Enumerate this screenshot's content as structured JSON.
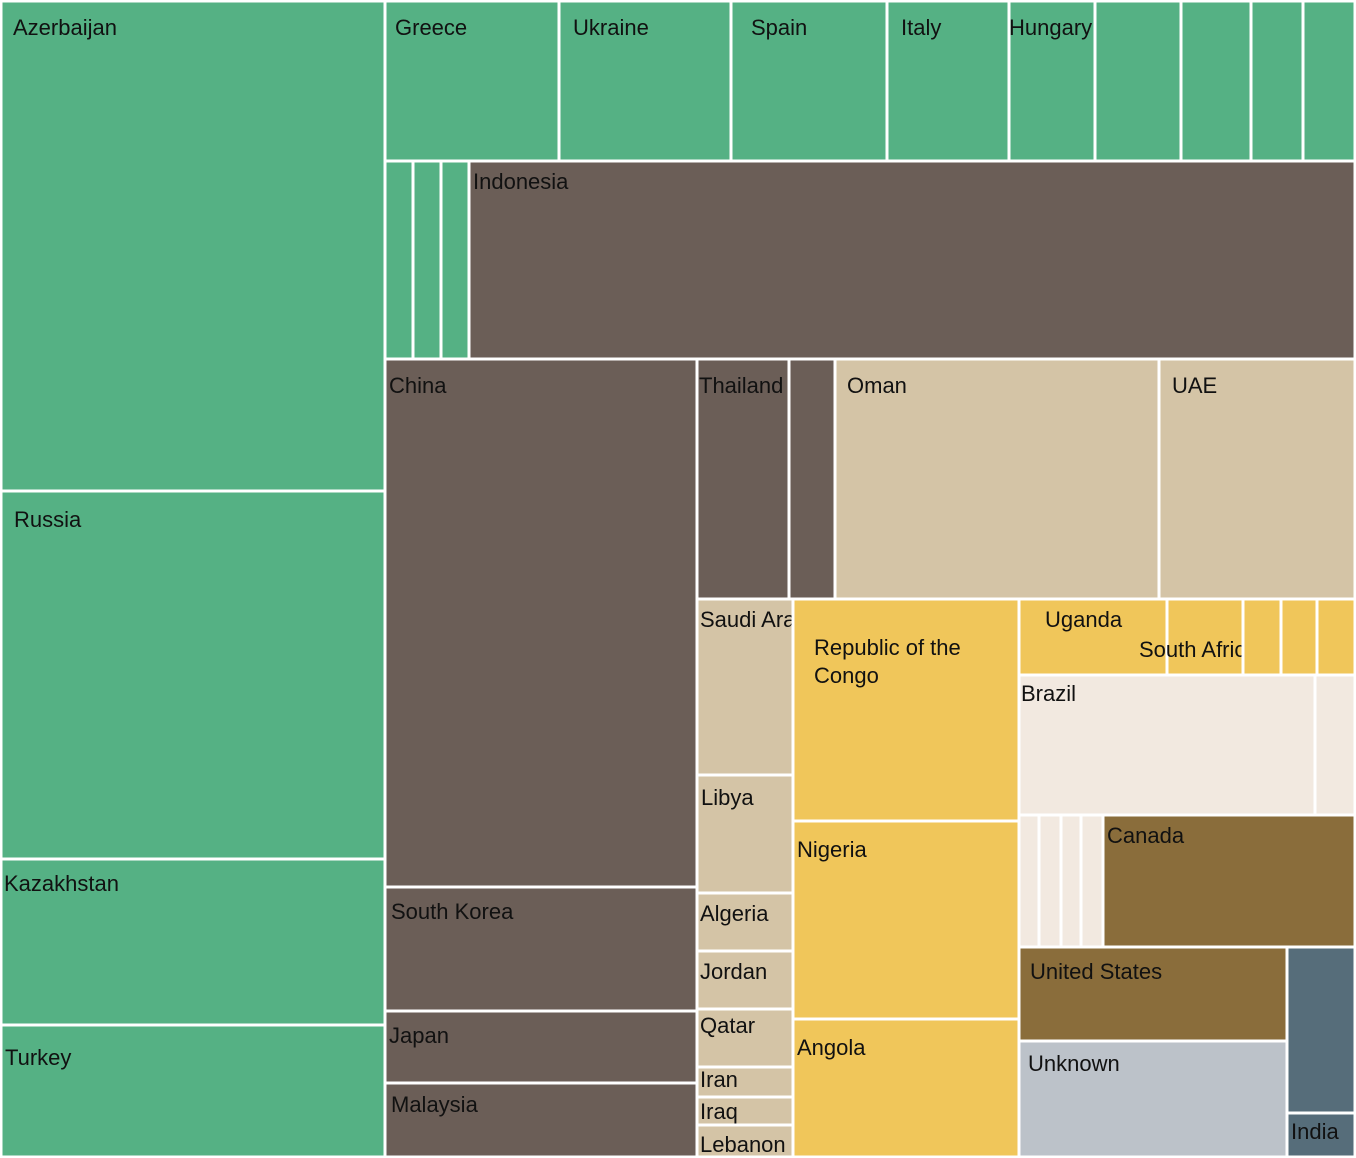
{
  "chart_data": {
    "type": "treemap",
    "group_colors": {
      "europe_central_asia": "#55b184",
      "asia": "#6b5e57",
      "middle_east": "#d4c4a6",
      "africa": "#f0c65a",
      "latin_america": "#f2e9e0",
      "north_america": "#8a6d3b",
      "unknown": "#bcc2c9",
      "south_asia": "#566d7a"
    },
    "cells": [
      {
        "label": "Azerbaijan",
        "group": "europe_central_asia"
      },
      {
        "label": "Russia",
        "group": "europe_central_asia"
      },
      {
        "label": "Kazakhstan",
        "group": "europe_central_asia"
      },
      {
        "label": "Turkey",
        "group": "europe_central_asia"
      },
      {
        "label": "Greece",
        "group": "europe_central_asia"
      },
      {
        "label": "Ukraine",
        "group": "europe_central_asia"
      },
      {
        "label": "Spain",
        "group": "europe_central_asia"
      },
      {
        "label": "Italy",
        "group": "europe_central_asia"
      },
      {
        "label": "Hungary",
        "group": "europe_central_asia"
      },
      {
        "label": "",
        "group": "europe_central_asia"
      },
      {
        "label": "",
        "group": "europe_central_asia"
      },
      {
        "label": "",
        "group": "europe_central_asia"
      },
      {
        "label": "",
        "group": "europe_central_asia"
      },
      {
        "label": "",
        "group": "europe_central_asia"
      },
      {
        "label": "",
        "group": "europe_central_asia"
      },
      {
        "label": "",
        "group": "europe_central_asia"
      },
      {
        "label": "Indonesia",
        "group": "asia"
      },
      {
        "label": "China",
        "group": "asia"
      },
      {
        "label": "South Korea",
        "group": "asia"
      },
      {
        "label": "Japan",
        "group": "asia"
      },
      {
        "label": "Malaysia",
        "group": "asia"
      },
      {
        "label": "Thailand",
        "group": "asia"
      },
      {
        "label": "",
        "group": "asia"
      },
      {
        "label": "Oman",
        "group": "middle_east"
      },
      {
        "label": "UAE",
        "group": "middle_east"
      },
      {
        "label": "Saudi Arabia",
        "group": "middle_east"
      },
      {
        "label": "Libya",
        "group": "middle_east"
      },
      {
        "label": "Algeria",
        "group": "middle_east"
      },
      {
        "label": "Jordan",
        "group": "middle_east"
      },
      {
        "label": "Qatar",
        "group": "middle_east"
      },
      {
        "label": "Iran",
        "group": "middle_east"
      },
      {
        "label": "Iraq",
        "group": "middle_east"
      },
      {
        "label": "Lebanon",
        "group": "middle_east"
      },
      {
        "label": "Republic of the Congo",
        "group": "africa"
      },
      {
        "label": "Nigeria",
        "group": "africa"
      },
      {
        "label": "Angola",
        "group": "africa"
      },
      {
        "label": "Uganda",
        "group": "africa"
      },
      {
        "label": "South Africa",
        "group": "africa"
      },
      {
        "label": "",
        "group": "africa"
      },
      {
        "label": "",
        "group": "africa"
      },
      {
        "label": "",
        "group": "africa"
      },
      {
        "label": "Brazil",
        "group": "latin_america"
      },
      {
        "label": "",
        "group": "latin_america"
      },
      {
        "label": "",
        "group": "latin_america"
      },
      {
        "label": "",
        "group": "latin_america"
      },
      {
        "label": "",
        "group": "latin_america"
      },
      {
        "label": "",
        "group": "latin_america"
      },
      {
        "label": "Canada",
        "group": "north_america"
      },
      {
        "label": "United States",
        "group": "north_america"
      },
      {
        "label": "Unknown",
        "group": "unknown"
      },
      {
        "label": "",
        "group": "south_asia"
      },
      {
        "label": "India",
        "group": "south_asia"
      }
    ]
  }
}
